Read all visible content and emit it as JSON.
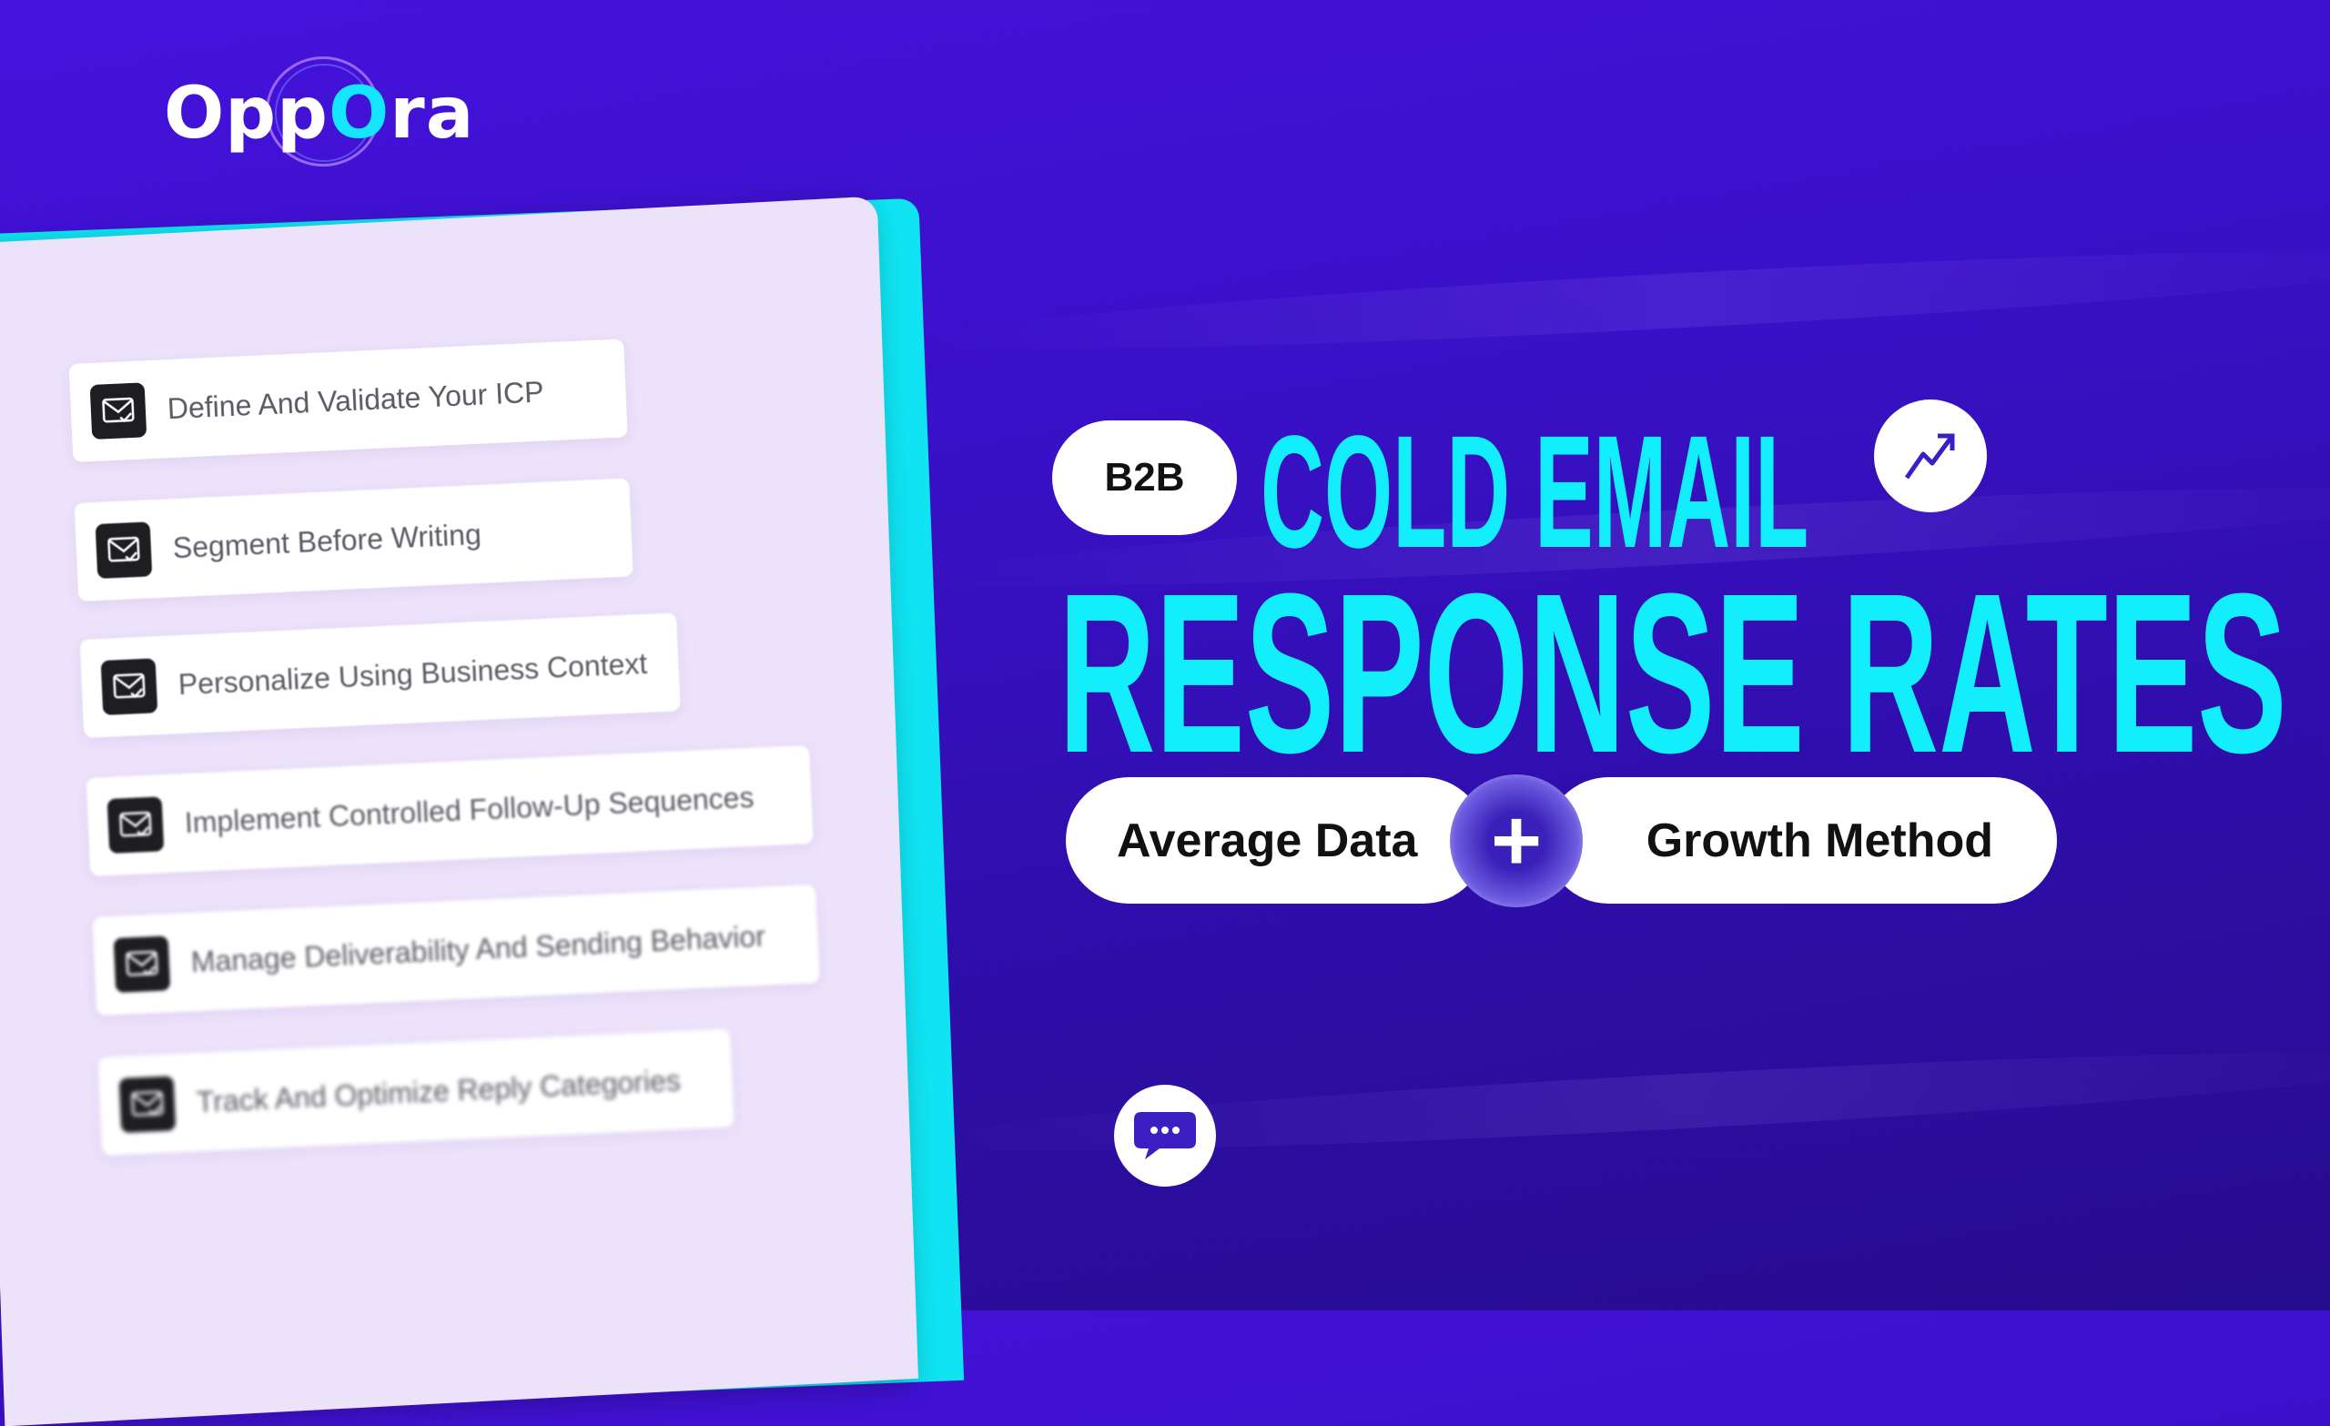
{
  "brand": {
    "logo_text_prefix": "Opp",
    "logo_text_o": "O",
    "logo_text_suffix": "ra"
  },
  "checklist": {
    "items": [
      {
        "label": "Define And Validate Your ICP",
        "icon": "mail-check-icon"
      },
      {
        "label": "Segment Before Writing",
        "icon": "mail-check-icon"
      },
      {
        "label": "Personalize Using Business Context",
        "icon": "mail-check-icon"
      },
      {
        "label": "Implement Controlled Follow-Up Sequences",
        "icon": "mail-check-icon"
      },
      {
        "label": "Manage Deliverability And Sending Behavior",
        "icon": "mail-check-icon"
      },
      {
        "label": "Track And Optimize Reply Categories",
        "icon": "mail-check-icon"
      }
    ]
  },
  "headline": {
    "badge": "B2B",
    "line1": "COLD EMAIL",
    "line2": "RESPONSE RATES",
    "left_pill": "Average Data",
    "connector": "+",
    "right_pill": "Growth Method"
  },
  "icons": {
    "trend": "trending-up-icon",
    "chat": "chat-bubble-icon"
  },
  "colors": {
    "accent": "#12eefb",
    "background": "#3a10c8",
    "panel": "#ece2fa"
  }
}
